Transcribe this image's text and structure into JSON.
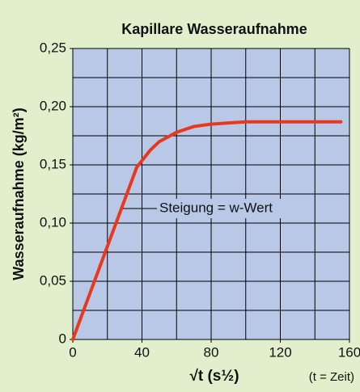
{
  "chart_data": {
    "type": "line",
    "title": "Kapillare Wasseraufnahme",
    "x_label": "√t (s½)",
    "y_label": "Wasseraufnahme (kg/m²)",
    "note": "(t = Zeit)",
    "annotation": "Steigung = w-Wert",
    "x": [
      0,
      10,
      20,
      30,
      37,
      45,
      50,
      60,
      70,
      80,
      90,
      100,
      120,
      140,
      155
    ],
    "values": [
      0,
      0.04,
      0.08,
      0.12,
      0.148,
      0.163,
      0.17,
      0.178,
      0.183,
      0.185,
      0.186,
      0.187,
      0.187,
      0.187,
      0.187
    ],
    "color": "#e8381e",
    "xlim": [
      0,
      165
    ],
    "ylim": [
      0,
      0.25
    ],
    "xticks": [
      0,
      40,
      80,
      120,
      160
    ],
    "yticks": [
      {
        "value": 0,
        "label": "0"
      },
      {
        "value": 0.05,
        "label": "0,05"
      },
      {
        "value": 0.1,
        "label": "0,10"
      },
      {
        "value": 0.15,
        "label": "0,15"
      },
      {
        "value": 0.2,
        "label": "0,20"
      },
      {
        "value": 0.25,
        "label": "0,25"
      }
    ],
    "x_grid": [
      0,
      20,
      40,
      60,
      80,
      100,
      120,
      140,
      160
    ],
    "y_grid": [
      0,
      0.025,
      0.05,
      0.075,
      0.1,
      0.125,
      0.15,
      0.175,
      0.2,
      0.225,
      0.25
    ],
    "grid": true
  }
}
